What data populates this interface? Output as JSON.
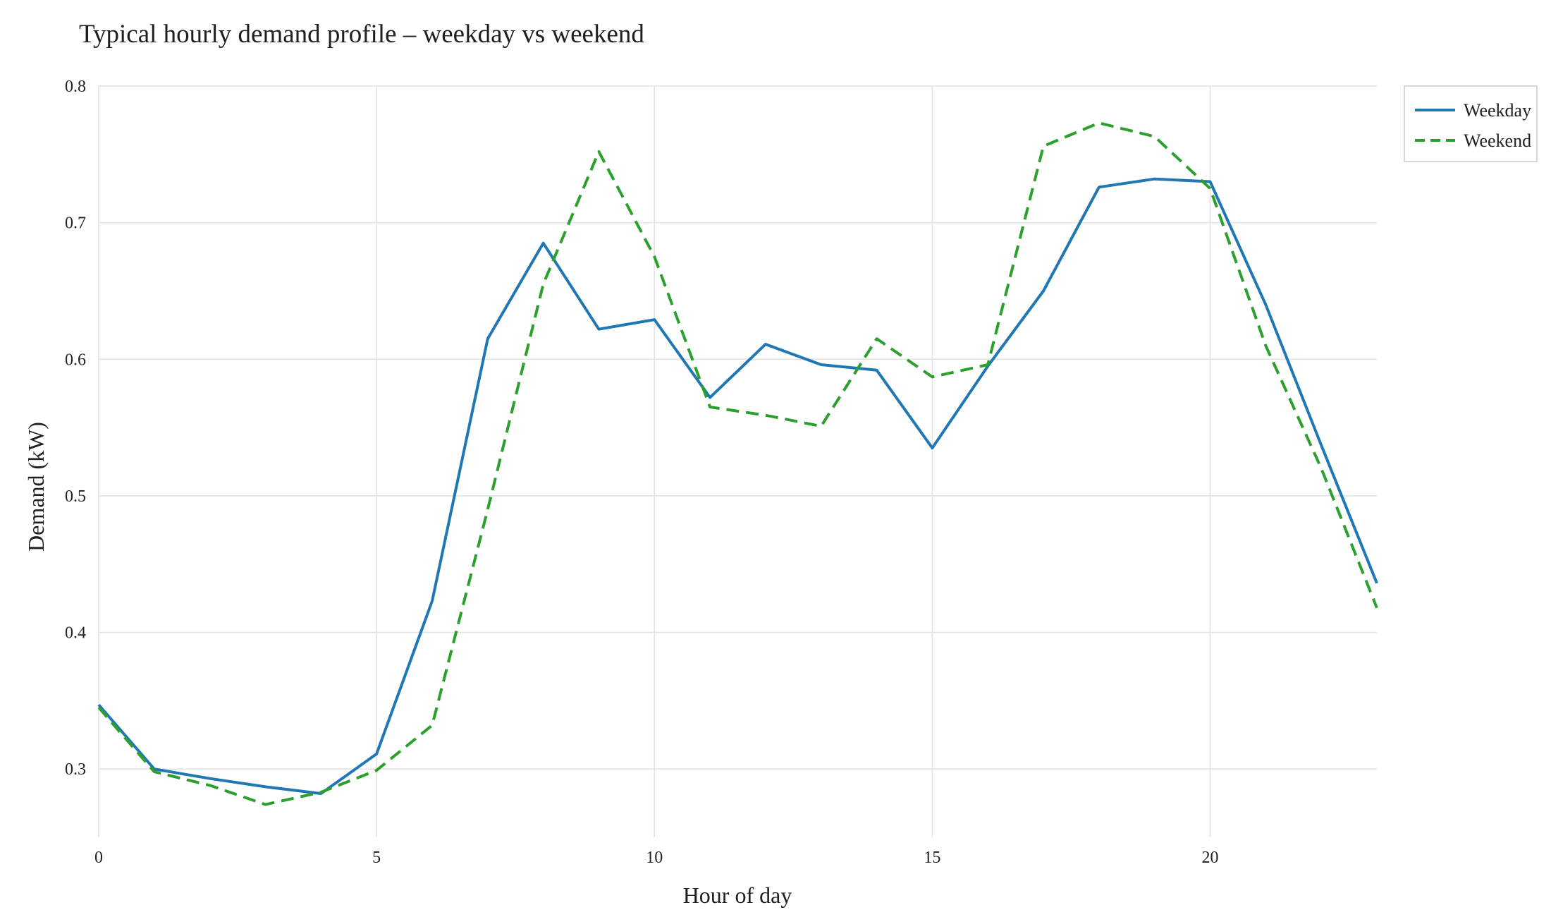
{
  "chart_data": {
    "type": "line",
    "title": "Typical hourly demand profile – weekday vs weekend",
    "xlabel": "Hour of day",
    "ylabel": "Demand (kW)",
    "xlim": [
      0,
      23
    ],
    "ylim": [
      0.25,
      0.8
    ],
    "x_ticks": [
      0,
      5,
      10,
      15,
      20
    ],
    "y_ticks": [
      0.3,
      0.4,
      0.5,
      0.6,
      0.7,
      0.8
    ],
    "x_tick_labels": [
      "0",
      "5",
      "10",
      "15",
      "20"
    ],
    "y_tick_labels": [
      "0.3",
      "0.4",
      "0.5",
      "0.6",
      "0.7",
      "0.8"
    ],
    "grid": true,
    "legend_position": "top-right",
    "x": [
      0,
      1,
      2,
      3,
      4,
      5,
      6,
      7,
      8,
      9,
      10,
      11,
      12,
      13,
      14,
      15,
      16,
      17,
      18,
      19,
      20,
      21,
      22,
      23
    ],
    "series": [
      {
        "name": "Weekday",
        "color": "#1f77b4",
        "style": "solid",
        "values": [
          0.347,
          0.3,
          0.293,
          0.287,
          0.282,
          0.311,
          0.423,
          0.615,
          0.685,
          0.622,
          0.629,
          0.572,
          0.611,
          0.596,
          0.592,
          0.535,
          0.595,
          0.65,
          0.726,
          0.732,
          0.73,
          0.64,
          0.537,
          0.436
        ]
      },
      {
        "name": "Weekend",
        "color": "#2ca02c",
        "style": "dashed",
        "values": [
          0.345,
          0.298,
          0.288,
          0.274,
          0.283,
          0.299,
          0.332,
          0.49,
          0.655,
          0.752,
          0.675,
          0.565,
          0.559,
          0.551,
          0.615,
          0.587,
          0.596,
          0.756,
          0.773,
          0.763,
          0.725,
          0.61,
          0.52,
          0.418
        ]
      }
    ]
  }
}
